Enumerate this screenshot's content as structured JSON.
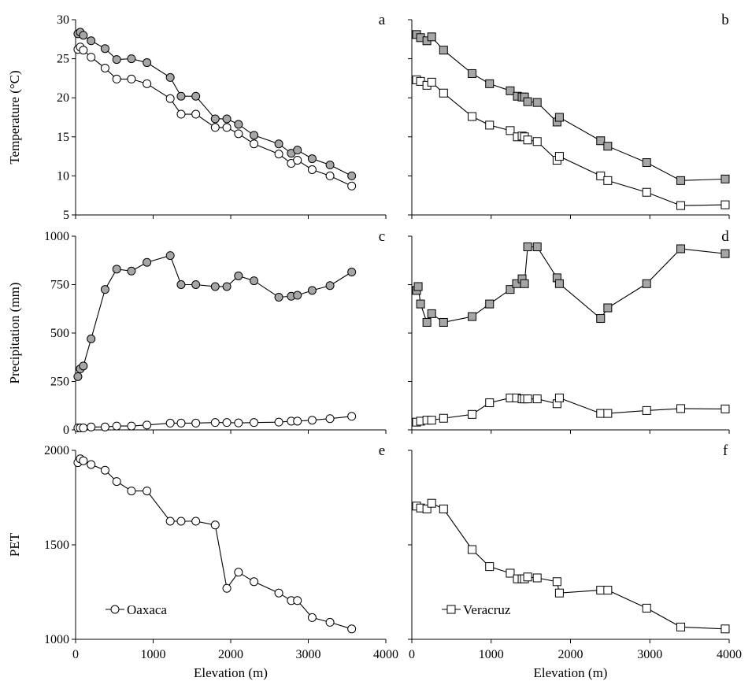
{
  "chart_data": [
    {
      "type": "line",
      "panel": "a",
      "ylabel": "Temperature (°C)",
      "xlabel": "",
      "ylim": [
        5,
        30
      ],
      "yticks": [
        5,
        10,
        15,
        20,
        25,
        30
      ],
      "xlim": [
        0,
        4000
      ],
      "xticks": [],
      "series": [
        {
          "name": "Oaxaca (upper)",
          "marker": "circle",
          "fill": "#a6a6a6",
          "x": [
            30,
            60,
            100,
            200,
            380,
            530,
            720,
            920,
            1220,
            1360,
            1550,
            1800,
            1950,
            2100,
            2300,
            2620,
            2780,
            2860,
            3050,
            3280,
            3560
          ],
          "y": [
            28.2,
            28.4,
            28.0,
            27.3,
            26.3,
            24.9,
            25.0,
            24.5,
            22.6,
            20.2,
            20.2,
            17.3,
            17.3,
            16.6,
            15.2,
            14.1,
            12.9,
            13.3,
            12.2,
            11.4,
            10.0
          ]
        },
        {
          "name": "Oaxaca (lower)",
          "marker": "circle",
          "fill": "#ffffff",
          "x": [
            30,
            60,
            100,
            200,
            380,
            530,
            720,
            920,
            1220,
            1360,
            1550,
            1800,
            1950,
            2100,
            2300,
            2620,
            2780,
            2860,
            3050,
            3280,
            3560
          ],
          "y": [
            26.2,
            26.5,
            26.1,
            25.2,
            23.8,
            22.4,
            22.4,
            21.8,
            19.9,
            17.9,
            17.9,
            16.2,
            16.2,
            15.4,
            14.1,
            12.8,
            11.6,
            12.0,
            10.8,
            10.0,
            8.7
          ]
        }
      ]
    },
    {
      "type": "line",
      "panel": "b",
      "ylabel": "",
      "xlabel": "",
      "ylim": [
        5,
        30
      ],
      "yticks": [
        5,
        10,
        15,
        20,
        25,
        30
      ],
      "xlim": [
        0,
        4000
      ],
      "xticks": [],
      "series": [
        {
          "name": "Veracruz (upper)",
          "marker": "square",
          "fill": "#a6a6a6",
          "x": [
            60,
            110,
            190,
            250,
            400,
            760,
            980,
            1240,
            1330,
            1390,
            1420,
            1460,
            1580,
            1830,
            1860,
            2380,
            2470,
            2960,
            3390,
            3950
          ],
          "y": [
            28.1,
            27.7,
            27.3,
            27.8,
            26.1,
            23.1,
            21.8,
            20.9,
            20.2,
            20.1,
            20.1,
            19.5,
            19.4,
            16.9,
            17.5,
            14.5,
            13.8,
            11.7,
            9.4,
            9.6
          ]
        },
        {
          "name": "Veracruz (lower)",
          "marker": "square",
          "fill": "#ffffff",
          "x": [
            60,
            110,
            190,
            250,
            400,
            760,
            980,
            1240,
            1330,
            1390,
            1420,
            1460,
            1580,
            1830,
            1860,
            2380,
            2470,
            2960,
            3390,
            3950
          ],
          "y": [
            22.3,
            22.1,
            21.6,
            22.0,
            20.6,
            17.6,
            16.5,
            15.8,
            15.0,
            15.1,
            15.0,
            14.6,
            14.4,
            12.0,
            12.5,
            10.0,
            9.4,
            7.9,
            6.2,
            6.3
          ]
        }
      ]
    },
    {
      "type": "line",
      "panel": "c",
      "ylabel": "Precipitation (mm)",
      "xlabel": "",
      "ylim": [
        0,
        1000
      ],
      "yticks": [
        0,
        250,
        500,
        750,
        1000
      ],
      "xlim": [
        0,
        4000
      ],
      "xticks": [],
      "series": [
        {
          "name": "Oaxaca (upper)",
          "marker": "circle",
          "fill": "#a6a6a6",
          "x": [
            30,
            60,
            100,
            200,
            380,
            530,
            720,
            920,
            1220,
            1360,
            1550,
            1800,
            1950,
            2100,
            2300,
            2620,
            2780,
            2860,
            3050,
            3280,
            3560
          ],
          "y": [
            275,
            315,
            330,
            470,
            725,
            830,
            820,
            865,
            900,
            750,
            750,
            740,
            740,
            795,
            770,
            685,
            690,
            695,
            720,
            745,
            815
          ]
        },
        {
          "name": "Oaxaca (lower)",
          "marker": "circle",
          "fill": "#ffffff",
          "x": [
            30,
            60,
            100,
            200,
            380,
            530,
            720,
            920,
            1220,
            1360,
            1550,
            1800,
            1950,
            2100,
            2300,
            2620,
            2780,
            2860,
            3050,
            3280,
            3560
          ],
          "y": [
            10,
            10,
            10,
            15,
            15,
            20,
            20,
            25,
            35,
            35,
            35,
            38,
            38,
            36,
            38,
            40,
            45,
            45,
            50,
            58,
            70
          ]
        }
      ]
    },
    {
      "type": "line",
      "panel": "d",
      "ylabel": "",
      "xlabel": "",
      "ylim": [
        0,
        1000
      ],
      "yticks": [
        0,
        250,
        500,
        750,
        1000
      ],
      "xlim": [
        0,
        4000
      ],
      "xticks": [],
      "series": [
        {
          "name": "Veracruz (upper)",
          "marker": "square",
          "fill": "#a6a6a6",
          "x": [
            60,
            80,
            110,
            190,
            250,
            400,
            760,
            980,
            1240,
            1320,
            1390,
            1420,
            1460,
            1580,
            1830,
            1860,
            2380,
            2470,
            2960,
            3390,
            3950
          ],
          "y": [
            720,
            740,
            650,
            555,
            600,
            555,
            585,
            650,
            725,
            755,
            780,
            755,
            945,
            945,
            785,
            755,
            575,
            630,
            755,
            935,
            910
          ]
        },
        {
          "name": "Veracruz (lower)",
          "marker": "square",
          "fill": "#ffffff",
          "x": [
            60,
            110,
            190,
            250,
            400,
            760,
            980,
            1240,
            1320,
            1390,
            1420,
            1460,
            1580,
            1830,
            1860,
            2380,
            2470,
            2960,
            3390,
            3950
          ],
          "y": [
            40,
            45,
            50,
            50,
            60,
            80,
            140,
            165,
            165,
            160,
            160,
            160,
            160,
            135,
            165,
            85,
            85,
            100,
            110,
            108
          ]
        }
      ]
    },
    {
      "type": "line",
      "panel": "e",
      "ylabel": "PET",
      "xlabel": "Elevation (m)",
      "ylim": [
        1000,
        2000
      ],
      "yticks": [
        1000,
        1500,
        2000
      ],
      "xlim": [
        0,
        4000
      ],
      "xticks": [
        0,
        1000,
        2000,
        3000,
        4000
      ],
      "legend": {
        "label": "Oaxaca",
        "position": "bottom-left"
      },
      "series": [
        {
          "name": "Oaxaca",
          "marker": "circle",
          "fill": "#ffffff",
          "x": [
            30,
            60,
            100,
            200,
            380,
            530,
            720,
            920,
            1220,
            1360,
            1550,
            1800,
            1950,
            2100,
            2300,
            2620,
            2780,
            2860,
            3050,
            3280,
            3560
          ],
          "y": [
            1935,
            1955,
            1945,
            1925,
            1895,
            1835,
            1785,
            1785,
            1625,
            1625,
            1625,
            1605,
            1270,
            1355,
            1305,
            1245,
            1205,
            1205,
            1115,
            1090,
            1055
          ]
        }
      ]
    },
    {
      "type": "line",
      "panel": "f",
      "ylabel": "",
      "xlabel": "Elevation (m)",
      "ylim": [
        1000,
        2000
      ],
      "yticks": [
        1000,
        1500,
        2000
      ],
      "xlim": [
        0,
        4000
      ],
      "xticks": [
        0,
        1000,
        2000,
        3000,
        4000
      ],
      "legend": {
        "label": "Veracruz",
        "position": "bottom-left"
      },
      "series": [
        {
          "name": "Veracruz",
          "marker": "square",
          "fill": "#ffffff",
          "x": [
            60,
            110,
            190,
            250,
            400,
            760,
            980,
            1240,
            1330,
            1390,
            1420,
            1460,
            1580,
            1830,
            1860,
            2380,
            2470,
            2960,
            3390,
            3950
          ],
          "y": [
            1705,
            1695,
            1690,
            1720,
            1690,
            1475,
            1385,
            1350,
            1320,
            1320,
            1320,
            1330,
            1325,
            1305,
            1245,
            1260,
            1260,
            1165,
            1065,
            1055
          ]
        }
      ]
    }
  ]
}
